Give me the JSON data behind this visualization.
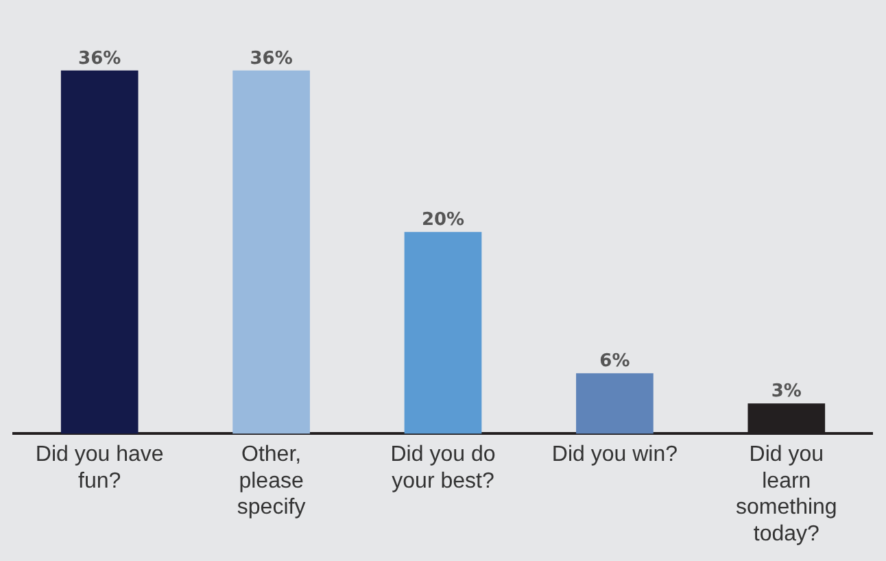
{
  "chart_data": {
    "type": "bar",
    "categories": [
      "Did you have fun?",
      "Other, please specify",
      "Did you do your best?",
      "Did you win?",
      "Did you learn something today?"
    ],
    "values": [
      36,
      36,
      20,
      6,
      3
    ],
    "colors": [
      "#141a4a",
      "#98b9dd",
      "#5b9bd3",
      "#5f84b9",
      "#231f20"
    ],
    "value_labels": [
      "36%",
      "36%",
      "20%",
      "6%",
      "3%"
    ],
    "tick_labels": "x",
    "grid": false,
    "legend": false
  }
}
